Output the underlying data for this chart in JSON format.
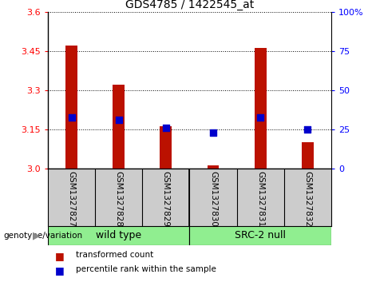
{
  "title": "GDS4785 / 1422545_at",
  "samples": [
    "GSM1327827",
    "GSM1327828",
    "GSM1327829",
    "GSM1327830",
    "GSM1327831",
    "GSM1327832"
  ],
  "red_values": [
    3.47,
    3.32,
    3.16,
    3.01,
    3.46,
    3.1
  ],
  "blue_values": [
    3.195,
    3.185,
    3.155,
    3.135,
    3.195,
    3.148
  ],
  "baseline": 3.0,
  "ylim_left": [
    3.0,
    3.6
  ],
  "ylim_right": [
    0,
    100
  ],
  "yticks_left": [
    3.0,
    3.15,
    3.3,
    3.45,
    3.6
  ],
  "yticks_right": [
    0,
    25,
    50,
    75,
    100
  ],
  "group_labels": [
    "wild type",
    "SRC-2 null"
  ],
  "group_ranges": [
    [
      0,
      2
    ],
    [
      3,
      5
    ]
  ],
  "group_color": "#90EE90",
  "genotype_label": "genotype/variation",
  "legend_red": "transformed count",
  "legend_blue": "percentile rank within the sample",
  "bar_color": "#BB1100",
  "dot_color": "#0000CC",
  "sample_bg_color": "#CCCCCC",
  "bar_width": 0.25,
  "dot_size": 40,
  "title_fontsize": 10,
  "axis_fontsize": 8,
  "label_fontsize": 7.5
}
